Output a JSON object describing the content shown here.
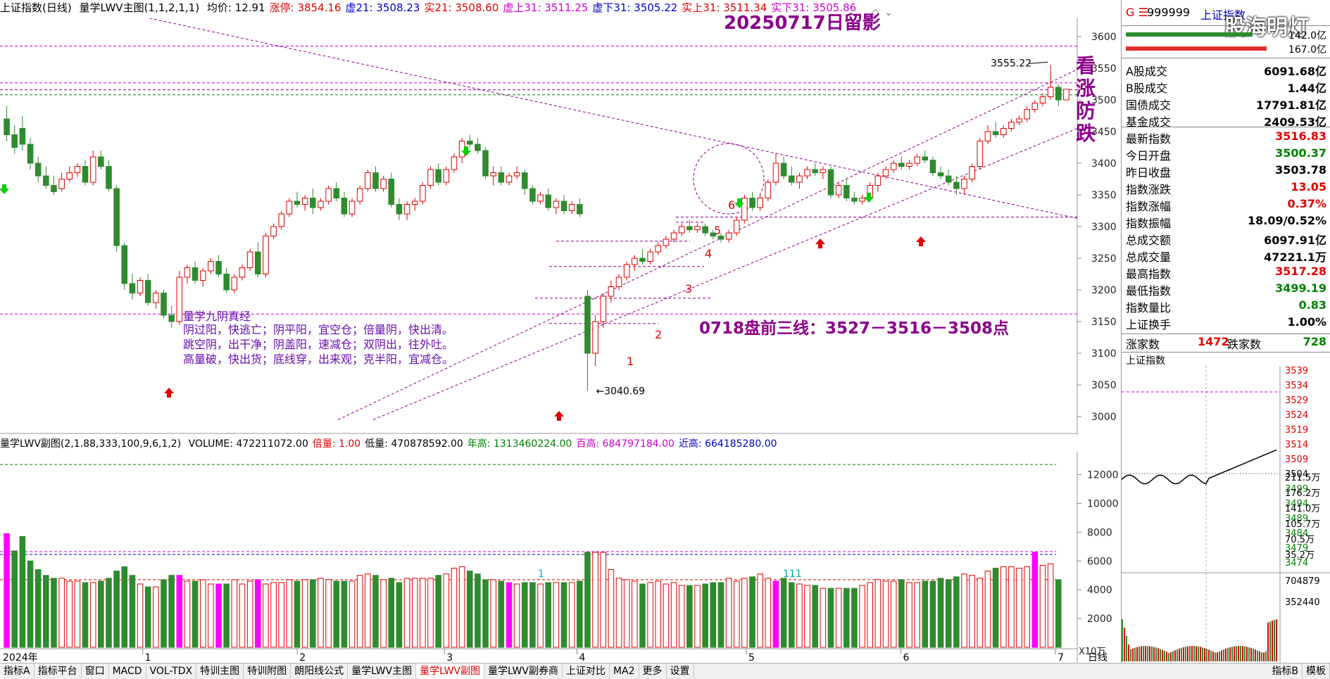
{
  "header": {
    "title": "上证指数(日线)",
    "indicator_name": "量学LWV主图(1,1,2,1,1)",
    "items": [
      {
        "label": "均价: 12.91",
        "color": "#000000"
      },
      {
        "label": "涨停: 3854.16",
        "color": "#e00000"
      },
      {
        "label": "虚21: 3508.23",
        "color": "#0000cc"
      },
      {
        "label": "实21: 3508.60",
        "color": "#e00000"
      },
      {
        "label": "虚上31: 3511.25",
        "color": "#cc00cc"
      },
      {
        "label": "虚下31: 3505.22",
        "color": "#0000cc"
      },
      {
        "label": "实上31: 3511.34",
        "color": "#e00000"
      },
      {
        "label": "实下31: 3505.86",
        "color": "#cc00cc"
      }
    ]
  },
  "annotations": {
    "date_note": "20250717日留影",
    "side_note": [
      "看",
      "涨",
      "防",
      "跌"
    ],
    "forecast": "0718盘前三线：3527－3516－3508点",
    "book_title": "量学九阴真经",
    "book_lines": [
      "阴过阳，快逃亡；阴平阳，宜空仓；倍量阴，快出清。",
      "跳空阴，出干净；阴盖阳，速减仓；双阴出，往外吐。",
      "高量破，快出货；底线穿，出来观；克半阳，宜减仓。"
    ],
    "high_label": "3555.22",
    "low_label": "3040.69",
    "ray_numbers": [
      "1",
      "2",
      "3",
      "4",
      "5",
      "6"
    ],
    "vol_marks": [
      "1",
      "111"
    ]
  },
  "volume_header": {
    "name": "量学LWV副图(2,1.88,333,100,9,6,1,2)",
    "items": [
      {
        "label": "VOLUME: 472211072.00",
        "color": "#000000"
      },
      {
        "label": "倍量: 1.00",
        "color": "#e00000"
      },
      {
        "label": "低量: 470878592.00",
        "color": "#000000"
      },
      {
        "label": "年高: 1313460224.00",
        "color": "#008000"
      },
      {
        "label": "百高: 684797184.00",
        "color": "#cc00cc"
      },
      {
        "label": "近高: 664185280.00",
        "color": "#0000cc"
      }
    ]
  },
  "x_axis": {
    "year_label": "2024年",
    "months": [
      "1",
      "2",
      "3",
      "4",
      "5",
      "6",
      "7"
    ],
    "period": "日线"
  },
  "vol_unit": "X10万",
  "tabs": [
    "指标A",
    "指标平台",
    "窗口",
    "MACD",
    "VOL-TDX",
    "特训主图",
    "特训附图",
    "朗阳线公式",
    "量学LWV主图",
    "量学LWV副图",
    "量学LWV副券商",
    "上证对比",
    "MA2",
    "更多",
    "设置",
    "指标B",
    "模板"
  ],
  "active_tab": "量学LWV副图",
  "panel": {
    "code_prefix": "G ☰",
    "code": "999999",
    "name": "上证指数",
    "watermark": "股海明灯",
    "amount_top": "142.0亿",
    "amount_bottom": "167.0亿",
    "rows": [
      {
        "label": "A股成交",
        "value": "6091.68亿",
        "color": "#000000"
      },
      {
        "label": "B股成交",
        "value": "1.44亿",
        "color": "#000000"
      },
      {
        "label": "国债成交",
        "value": "17791.81亿",
        "color": "#000000"
      },
      {
        "label": "基金成交",
        "value": "2409.53亿",
        "color": "#000000"
      },
      {
        "label": "最新指数",
        "value": "3516.83",
        "color": "#e00000"
      },
      {
        "label": "今日开盘",
        "value": "3500.37",
        "color": "#008000"
      },
      {
        "label": "昨日收盘",
        "value": "3503.78",
        "color": "#000000"
      },
      {
        "label": "指数涨跌",
        "value": "13.05",
        "color": "#e00000"
      },
      {
        "label": "指数涨幅",
        "value": "0.37%",
        "color": "#e00000"
      },
      {
        "label": "指数振幅",
        "value": "18.09/0.52%",
        "color": "#000000"
      },
      {
        "label": "总成交额",
        "value": "6097.91亿",
        "color": "#000000"
      },
      {
        "label": "总成交量",
        "value": "47221.1万",
        "color": "#000000"
      },
      {
        "label": "最高指数",
        "value": "3517.28",
        "color": "#e00000"
      },
      {
        "label": "最低指数",
        "value": "3499.19",
        "color": "#008000"
      },
      {
        "label": "指数量比",
        "value": "0.83",
        "color": "#008000"
      },
      {
        "label": "上证换手",
        "value": "1.00%",
        "color": "#000000"
      }
    ],
    "rise_label": "涨家数",
    "rise_value": "1472",
    "fall_label": "跌家数",
    "fall_value": "728",
    "intraday_title": "上证指数",
    "intraday_price_ticks": [
      "3539",
      "3534",
      "3529",
      "3524",
      "3519",
      "3514",
      "3509",
      "3504",
      "3499",
      "3494",
      "3489",
      "3484",
      "3479",
      "3474"
    ],
    "intraday_vol_ticks": [
      "211.5万",
      "176.2万",
      "141.0万",
      "105.7万",
      "70.5万",
      "35.2万"
    ],
    "intraday_vol_ticks2": [
      "704879",
      "352440"
    ]
  },
  "chart_data": {
    "type": "candlestick",
    "title": "上证指数(日线)",
    "price_ticks": [
      3600,
      3550,
      3500,
      3450,
      3400,
      3350,
      3300,
      3250,
      3200,
      3150,
      3100,
      3050,
      3000
    ],
    "volume_ticks": [
      12000,
      10000,
      8000,
      6000,
      4000,
      2000
    ],
    "high": 3555.22,
    "low": 3040.69,
    "last_close": 3516.83,
    "horizontal_levels": [
      3585,
      3527,
      3516,
      3508,
      3162,
      3315
    ],
    "candles": [
      [
        3470,
        3490,
        3445,
        3435
      ],
      [
        3445,
        3460,
        3425,
        3415
      ],
      [
        3455,
        3475,
        3430,
        3420
      ],
      [
        3430,
        3440,
        3400,
        3390
      ],
      [
        3400,
        3410,
        3380,
        3370
      ],
      [
        3380,
        3395,
        3365,
        3360
      ],
      [
        3365,
        3380,
        3355,
        3350
      ],
      [
        3360,
        3385,
        3375,
        3355
      ],
      [
        3375,
        3395,
        3385,
        3370
      ],
      [
        3385,
        3400,
        3395,
        3378
      ],
      [
        3395,
        3405,
        3370,
        3365
      ],
      [
        3370,
        3420,
        3410,
        3365
      ],
      [
        3410,
        3420,
        3395,
        3390
      ],
      [
        3395,
        3405,
        3360,
        3355
      ],
      [
        3360,
        3365,
        3270,
        3260
      ],
      [
        3270,
        3275,
        3210,
        3200
      ],
      [
        3210,
        3225,
        3195,
        3185
      ],
      [
        3195,
        3220,
        3215,
        3190
      ],
      [
        3215,
        3225,
        3180,
        3175
      ],
      [
        3180,
        3200,
        3195,
        3170
      ],
      [
        3195,
        3200,
        3160,
        3155
      ],
      [
        3160,
        3175,
        3150,
        3140
      ],
      [
        3150,
        3230,
        3220,
        3145
      ],
      [
        3220,
        3240,
        3235,
        3210
      ],
      [
        3235,
        3245,
        3215,
        3210
      ],
      [
        3215,
        3235,
        3230,
        3205
      ],
      [
        3230,
        3250,
        3245,
        3225
      ],
      [
        3245,
        3255,
        3225,
        3220
      ],
      [
        3225,
        3235,
        3200,
        3195
      ],
      [
        3200,
        3225,
        3220,
        3195
      ],
      [
        3220,
        3240,
        3235,
        3215
      ],
      [
        3235,
        3265,
        3260,
        3230
      ],
      [
        3260,
        3275,
        3225,
        3220
      ],
      [
        3225,
        3290,
        3285,
        3220
      ],
      [
        3285,
        3305,
        3300,
        3280
      ],
      [
        3300,
        3325,
        3320,
        3295
      ],
      [
        3320,
        3345,
        3340,
        3315
      ],
      [
        3340,
        3355,
        3335,
        3330
      ],
      [
        3335,
        3350,
        3345,
        3325
      ],
      [
        3345,
        3360,
        3330,
        3320
      ],
      [
        3330,
        3345,
        3340,
        3325
      ],
      [
        3340,
        3365,
        3360,
        3335
      ],
      [
        3360,
        3370,
        3345,
        3340
      ],
      [
        3345,
        3355,
        3320,
        3315
      ],
      [
        3320,
        3345,
        3340,
        3315
      ],
      [
        3340,
        3365,
        3360,
        3335
      ],
      [
        3360,
        3390,
        3385,
        3355
      ],
      [
        3385,
        3395,
        3360,
        3355
      ],
      [
        3360,
        3380,
        3375,
        3355
      ],
      [
        3375,
        3385,
        3335,
        3330
      ],
      [
        3335,
        3345,
        3320,
        3310
      ],
      [
        3320,
        3340,
        3335,
        3310
      ],
      [
        3335,
        3345,
        3340,
        3325
      ],
      [
        3340,
        3370,
        3365,
        3335
      ],
      [
        3365,
        3395,
        3390,
        3360
      ],
      [
        3390,
        3400,
        3370,
        3365
      ],
      [
        3370,
        3395,
        3390,
        3365
      ],
      [
        3390,
        3415,
        3410,
        3385
      ],
      [
        3410,
        3440,
        3435,
        3400
      ],
      [
        3435,
        3445,
        3430,
        3425
      ],
      [
        3430,
        3440,
        3420,
        3415
      ],
      [
        3420,
        3425,
        3380,
        3375
      ],
      [
        3380,
        3395,
        3385,
        3365
      ],
      [
        3385,
        3395,
        3370,
        3365
      ],
      [
        3370,
        3385,
        3380,
        3365
      ],
      [
        3380,
        3395,
        3385,
        3375
      ],
      [
        3385,
        3390,
        3360,
        3350
      ],
      [
        3360,
        3365,
        3340,
        3335
      ],
      [
        3340,
        3355,
        3350,
        3335
      ],
      [
        3350,
        3360,
        3330,
        3325
      ],
      [
        3330,
        3345,
        3340,
        3320
      ],
      [
        3340,
        3350,
        3325,
        3320
      ],
      [
        3325,
        3340,
        3335,
        3320
      ],
      [
        3335,
        3345,
        3320,
        3315
      ],
      [
        3190,
        3200,
        3100,
        3040.69
      ],
      [
        3100,
        3160,
        3150,
        3080
      ],
      [
        3150,
        3195,
        3190,
        3140
      ],
      [
        3190,
        3215,
        3205,
        3180
      ],
      [
        3205,
        3225,
        3220,
        3200
      ],
      [
        3220,
        3245,
        3240,
        3215
      ],
      [
        3240,
        3255,
        3250,
        3230
      ],
      [
        3250,
        3265,
        3245,
        3240
      ],
      [
        3245,
        3265,
        3260,
        3240
      ],
      [
        3260,
        3275,
        3270,
        3255
      ],
      [
        3270,
        3285,
        3280,
        3265
      ],
      [
        3280,
        3295,
        3290,
        3275
      ],
      [
        3290,
        3305,
        3300,
        3285
      ],
      [
        3300,
        3310,
        3295,
        3290
      ],
      [
        3295,
        3305,
        3300,
        3290
      ],
      [
        3300,
        3305,
        3290,
        3285
      ],
      [
        3290,
        3295,
        3285,
        3280
      ],
      [
        3285,
        3290,
        3280,
        3275
      ],
      [
        3280,
        3295,
        3290,
        3275
      ],
      [
        3290,
        3315,
        3310,
        3285
      ],
      [
        3310,
        3350,
        3345,
        3305
      ],
      [
        3345,
        3355,
        3330,
        3325
      ],
      [
        3330,
        3350,
        3345,
        3325
      ],
      [
        3345,
        3375,
        3370,
        3340
      ],
      [
        3370,
        3415,
        3400,
        3365
      ],
      [
        3400,
        3410,
        3380,
        3375
      ],
      [
        3380,
        3395,
        3370,
        3365
      ],
      [
        3370,
        3385,
        3380,
        3360
      ],
      [
        3380,
        3395,
        3390,
        3375
      ],
      [
        3390,
        3400,
        3385,
        3380
      ],
      [
        3385,
        3395,
        3390,
        3375
      ],
      [
        3390,
        3395,
        3350,
        3345
      ],
      [
        3350,
        3370,
        3365,
        3345
      ],
      [
        3365,
        3375,
        3345,
        3340
      ],
      [
        3345,
        3355,
        3340,
        3335
      ],
      [
        3340,
        3350,
        3345,
        3335
      ],
      [
        3345,
        3370,
        3365,
        3340
      ],
      [
        3365,
        3385,
        3380,
        3355
      ],
      [
        3380,
        3395,
        3390,
        3375
      ],
      [
        3390,
        3405,
        3400,
        3385
      ],
      [
        3400,
        3410,
        3395,
        3390
      ],
      [
        3395,
        3405,
        3400,
        3390
      ],
      [
        3400,
        3415,
        3410,
        3395
      ],
      [
        3410,
        3420,
        3405,
        3400
      ],
      [
        3405,
        3410,
        3385,
        3380
      ],
      [
        3385,
        3395,
        3380,
        3375
      ],
      [
        3380,
        3390,
        3370,
        3365
      ],
      [
        3370,
        3380,
        3360,
        3350
      ],
      [
        3360,
        3380,
        3375,
        3350
      ],
      [
        3375,
        3400,
        3395,
        3370
      ],
      [
        3395,
        3440,
        3435,
        3390
      ],
      [
        3435,
        3460,
        3450,
        3430
      ],
      [
        3450,
        3465,
        3445,
        3440
      ],
      [
        3445,
        3460,
        3455,
        3440
      ],
      [
        3455,
        3470,
        3465,
        3450
      ],
      [
        3465,
        3475,
        3470,
        3460
      ],
      [
        3470,
        3490,
        3485,
        3465
      ],
      [
        3485,
        3500,
        3495,
        3480
      ],
      [
        3495,
        3510,
        3505,
        3490
      ],
      [
        3505,
        3555.22,
        3520,
        3500
      ],
      [
        3520,
        3525,
        3500,
        3490
      ],
      [
        3500,
        3517.28,
        3516.83,
        3499.19
      ]
    ],
    "volumes": [
      7900,
      6700,
      7700,
      6000,
      5400,
      5000,
      4800,
      4800,
      4600,
      4600,
      4500,
      4500,
      4600,
      4800,
      5300,
      5600,
      5000,
      4400,
      4200,
      4200,
      4700,
      5000,
      5000,
      4600,
      4600,
      4700,
      4400,
      4400,
      4400,
      4700,
      4400,
      4600,
      4700,
      4400,
      4500,
      4500,
      4700,
      4600,
      4700,
      4700,
      4800,
      4700,
      4600,
      4600,
      4600,
      5000,
      5100,
      5000,
      4700,
      4800,
      4500,
      4800,
      4800,
      4800,
      4800,
      5000,
      5100,
      5500,
      5600,
      5300,
      5100,
      4700,
      4700,
      4600,
      4500,
      4400,
      4500,
      4500,
      4400,
      4500,
      4500,
      4500,
      4500,
      4600,
      6600,
      6600,
      6600,
      5400,
      4800,
      4700,
      4600,
      4400,
      4500,
      4600,
      4400,
      4500,
      4300,
      4300,
      4300,
      4400,
      4500,
      4500,
      4800,
      4600,
      4800,
      4900,
      5100,
      4800,
      4600,
      4800,
      4500,
      4400,
      4300,
      4300,
      4100,
      4100,
      4100,
      4100,
      4100,
      4300,
      4500,
      4700,
      4600,
      4600,
      4700,
      4500,
      4500,
      4600,
      4600,
      4800,
      4700,
      4900,
      5100,
      5000,
      4800,
      5300,
      5500,
      5600,
      5600,
      5500,
      5600,
      6600,
      5700,
      5800,
      4700
    ]
  }
}
